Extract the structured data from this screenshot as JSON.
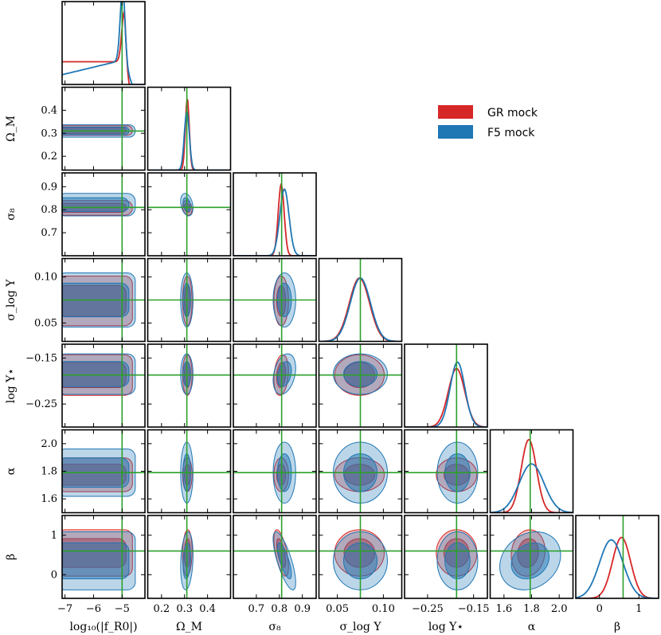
{
  "chart_data": {
    "type": "corner",
    "title": "",
    "parameters": [
      {
        "name": "log10_fR0",
        "label": "log₁₀(|f_R0|)",
        "range": [
          -7.1,
          -4.2
        ],
        "ticks": [
          -7,
          -6,
          -5
        ],
        "tick_labels": [
          "−7",
          "−6",
          "−5"
        ],
        "truth": -5.0
      },
      {
        "name": "Omega_M",
        "label": "Ω_M",
        "range": [
          0.14,
          0.5
        ],
        "ticks": [
          0.2,
          0.3,
          0.4
        ],
        "tick_labels": [
          "0.2",
          "0.3",
          "0.4"
        ],
        "truth": 0.31
      },
      {
        "name": "sigma_8",
        "label": "σ₈",
        "range": [
          0.6,
          0.96
        ],
        "ticks": [
          0.7,
          0.8,
          0.9
        ],
        "tick_labels": [
          "0.7",
          "0.8",
          "0.9"
        ],
        "truth": 0.81
      },
      {
        "name": "sigma_logY",
        "label": "σ_log Y",
        "range": [
          0.03,
          0.12
        ],
        "ticks": [
          0.05,
          0.1
        ],
        "tick_labels": [
          "0.05",
          "0.10"
        ],
        "truth": 0.075
      },
      {
        "name": "logY_star",
        "label": "log Y⋆",
        "range": [
          -0.3,
          -0.12
        ],
        "ticks": [
          -0.25,
          -0.15
        ],
        "tick_labels": [
          "−0.25",
          "−0.15"
        ],
        "truth": -0.187
      },
      {
        "name": "alpha",
        "label": "α",
        "range": [
          1.5,
          2.1
        ],
        "ticks": [
          1.6,
          1.8,
          2.0
        ],
        "tick_labels": [
          "1.6",
          "1.8",
          "2.0"
        ],
        "truth": 1.79
      },
      {
        "name": "beta",
        "label": "β",
        "range": [
          -0.6,
          1.5
        ],
        "ticks": [
          0,
          1
        ],
        "tick_labels": [
          "0",
          "1"
        ],
        "truth": 0.6
      }
    ],
    "x_axis_labels": [
      "log₁₀(|f_R0|)",
      "Ω_M",
      "σ₈",
      "σ_log Y",
      "log Y⋆",
      "α",
      "β"
    ],
    "y_axis_labels": [
      "",
      "Ω_M",
      "σ₈",
      "σ_log Y",
      "log Y⋆",
      "α",
      "β"
    ],
    "y_tick_labels": {
      "Omega_M": [
        "0.2",
        "0.3",
        "0.4"
      ],
      "sigma_8": [
        "0.7",
        "0.8",
        "0.9"
      ],
      "sigma_logY": [
        "0.05",
        "0.10"
      ],
      "logY_star": [
        "−0.25",
        "−0.15"
      ],
      "alpha": [
        "1.6",
        "1.8",
        "2.0"
      ],
      "beta": [
        "0",
        "1"
      ]
    },
    "series": [
      {
        "name": "GR mock",
        "color": "#d62728",
        "marginals": {
          "log10_fR0": {
            "shape": "flat_then_drop",
            "plateau_level": 0.28,
            "bump_at": -4.92,
            "bump_height": 0.62,
            "cutoff": -4.75
          },
          "Omega_M": {
            "mean": 0.312,
            "sd": 0.0085
          },
          "sigma_8": {
            "mean": 0.808,
            "sd": 0.013
          },
          "sigma_logY": {
            "mean": 0.074,
            "sd": 0.011
          },
          "logY_star": {
            "mean": -0.187,
            "sd": 0.018
          },
          "alpha": {
            "mean": 1.78,
            "sd": 0.055
          },
          "beta": {
            "mean": 0.56,
            "sd": 0.23
          }
        },
        "contours_2d": [
          {
            "x": "log10_fR0",
            "y": "Omega_M",
            "cx": -5.9,
            "cy": 0.312,
            "sx": 0.55,
            "sy": 0.0085,
            "rho": 0.0,
            "flat_x": true
          },
          {
            "x": "log10_fR0",
            "y": "sigma_8",
            "cx": -5.9,
            "cy": 0.808,
            "sx": 0.55,
            "sy": 0.013,
            "rho": 0.0,
            "flat_x": true
          },
          {
            "x": "log10_fR0",
            "y": "sigma_logY",
            "cx": -5.9,
            "cy": 0.074,
            "sx": 0.55,
            "sy": 0.011,
            "rho": 0.0,
            "flat_x": true
          },
          {
            "x": "log10_fR0",
            "y": "logY_star",
            "cx": -5.9,
            "cy": -0.187,
            "sx": 0.55,
            "sy": 0.018,
            "rho": 0.0,
            "flat_x": true
          },
          {
            "x": "log10_fR0",
            "y": "alpha",
            "cx": -5.9,
            "cy": 1.775,
            "sx": 0.55,
            "sy": 0.05,
            "rho": 0.0,
            "flat_x": true
          },
          {
            "x": "log10_fR0",
            "y": "beta",
            "cx": -5.9,
            "cy": 0.55,
            "sx": 0.55,
            "sy": 0.24,
            "rho": 0.0,
            "flat_x": true
          },
          {
            "x": "Omega_M",
            "y": "sigma_8",
            "cx": 0.312,
            "cy": 0.808,
            "sx": 0.0085,
            "sy": 0.013,
            "rho": -0.2
          },
          {
            "x": "Omega_M",
            "y": "sigma_logY",
            "cx": 0.312,
            "cy": 0.074,
            "sx": 0.0085,
            "sy": 0.011,
            "rho": 0.0
          },
          {
            "x": "Omega_M",
            "y": "logY_star",
            "cx": 0.312,
            "cy": -0.187,
            "sx": 0.0085,
            "sy": 0.018,
            "rho": 0.0
          },
          {
            "x": "Omega_M",
            "y": "alpha",
            "cx": 0.312,
            "cy": 1.775,
            "sx": 0.0085,
            "sy": 0.05,
            "rho": 0.0
          },
          {
            "x": "Omega_M",
            "y": "beta",
            "cx": 0.312,
            "cy": 0.55,
            "sx": 0.0085,
            "sy": 0.24,
            "rho": 0.1
          },
          {
            "x": "sigma_8",
            "y": "sigma_logY",
            "cx": 0.808,
            "cy": 0.074,
            "sx": 0.013,
            "sy": 0.011,
            "rho": 0.0
          },
          {
            "x": "sigma_8",
            "y": "logY_star",
            "cx": 0.808,
            "cy": -0.187,
            "sx": 0.013,
            "sy": 0.018,
            "rho": 0.2
          },
          {
            "x": "sigma_8",
            "y": "alpha",
            "cx": 0.808,
            "cy": 1.775,
            "sx": 0.013,
            "sy": 0.05,
            "rho": 0.0
          },
          {
            "x": "sigma_8",
            "y": "beta",
            "cx": 0.808,
            "cy": 0.55,
            "sx": 0.013,
            "sy": 0.24,
            "rho": -0.6
          },
          {
            "x": "sigma_logY",
            "y": "logY_star",
            "cx": 0.074,
            "cy": -0.187,
            "sx": 0.011,
            "sy": 0.018,
            "rho": 0.0
          },
          {
            "x": "sigma_logY",
            "y": "alpha",
            "cx": 0.074,
            "cy": 1.775,
            "sx": 0.011,
            "sy": 0.05,
            "rho": 0.0
          },
          {
            "x": "sigma_logY",
            "y": "beta",
            "cx": 0.074,
            "cy": 0.55,
            "sx": 0.011,
            "sy": 0.24,
            "rho": 0.0
          },
          {
            "x": "logY_star",
            "y": "alpha",
            "cx": -0.187,
            "cy": 1.775,
            "sx": 0.018,
            "sy": 0.05,
            "rho": 0.0
          },
          {
            "x": "logY_star",
            "y": "beta",
            "cx": -0.187,
            "cy": 0.55,
            "sx": 0.018,
            "sy": 0.24,
            "rho": 0.0
          },
          {
            "x": "alpha",
            "y": "beta",
            "cx": 1.775,
            "cy": 0.55,
            "sx": 0.05,
            "sy": 0.24,
            "rho": 0.1
          }
        ]
      },
      {
        "name": "F5 mock",
        "color": "#1f77b4",
        "marginals": {
          "log10_fR0": {
            "shape": "rising_peak",
            "plateau_level": 0.12,
            "bump_at": -4.97,
            "bump_height": 0.95,
            "cutoff": -4.65
          },
          "Omega_M": {
            "mean": 0.31,
            "sd": 0.011
          },
          "sigma_8": {
            "mean": 0.822,
            "sd": 0.02
          },
          "sigma_logY": {
            "mean": 0.075,
            "sd": 0.011
          },
          "logY_star": {
            "mean": -0.185,
            "sd": 0.016
          },
          "alpha": {
            "mean": 1.8,
            "sd": 0.09
          },
          "beta": {
            "mean": 0.3,
            "sd": 0.3
          }
        },
        "contours_2d": [
          {
            "x": "log10_fR0",
            "y": "Omega_M",
            "cx": -5.8,
            "cy": 0.31,
            "sx": 0.6,
            "sy": 0.011,
            "rho": 0.0,
            "flat_x": true
          },
          {
            "x": "log10_fR0",
            "y": "sigma_8",
            "cx": -5.8,
            "cy": 0.822,
            "sx": 0.6,
            "sy": 0.02,
            "rho": 0.0,
            "flat_x": true
          },
          {
            "x": "log10_fR0",
            "y": "sigma_logY",
            "cx": -5.8,
            "cy": 0.075,
            "sx": 0.6,
            "sy": 0.012,
            "rho": 0.0,
            "flat_x": true
          },
          {
            "x": "log10_fR0",
            "y": "logY_star",
            "cx": -5.8,
            "cy": -0.185,
            "sx": 0.6,
            "sy": 0.018,
            "rho": 0.0,
            "flat_x": true
          },
          {
            "x": "log10_fR0",
            "y": "alpha",
            "cx": -5.8,
            "cy": 1.79,
            "sx": 0.6,
            "sy": 0.07,
            "rho": 0.3,
            "flat_x": true
          },
          {
            "x": "log10_fR0",
            "y": "beta",
            "cx": -5.8,
            "cy": 0.35,
            "sx": 0.6,
            "sy": 0.3,
            "rho": 0.0,
            "flat_x": true
          },
          {
            "x": "Omega_M",
            "y": "sigma_8",
            "cx": 0.31,
            "cy": 0.822,
            "sx": 0.011,
            "sy": 0.02,
            "rho": -0.3
          },
          {
            "x": "Omega_M",
            "y": "sigma_logY",
            "cx": 0.31,
            "cy": 0.075,
            "sx": 0.011,
            "sy": 0.012,
            "rho": 0.0
          },
          {
            "x": "Omega_M",
            "y": "logY_star",
            "cx": 0.31,
            "cy": -0.185,
            "sx": 0.011,
            "sy": 0.018,
            "rho": 0.0
          },
          {
            "x": "Omega_M",
            "y": "alpha",
            "cx": 0.31,
            "cy": 1.79,
            "sx": 0.011,
            "sy": 0.09,
            "rho": 0.0
          },
          {
            "x": "Omega_M",
            "y": "beta",
            "cx": 0.31,
            "cy": 0.35,
            "sx": 0.011,
            "sy": 0.3,
            "rho": 0.2
          },
          {
            "x": "sigma_8",
            "y": "sigma_logY",
            "cx": 0.822,
            "cy": 0.075,
            "sx": 0.02,
            "sy": 0.012,
            "rho": 0.0
          },
          {
            "x": "sigma_8",
            "y": "logY_star",
            "cx": 0.822,
            "cy": -0.185,
            "sx": 0.02,
            "sy": 0.018,
            "rho": 0.3
          },
          {
            "x": "sigma_8",
            "y": "alpha",
            "cx": 0.822,
            "cy": 1.79,
            "sx": 0.02,
            "sy": 0.09,
            "rho": 0.0
          },
          {
            "x": "sigma_8",
            "y": "beta",
            "cx": 0.822,
            "cy": 0.35,
            "sx": 0.02,
            "sy": 0.3,
            "rho": -0.75
          },
          {
            "x": "sigma_logY",
            "y": "logY_star",
            "cx": 0.075,
            "cy": -0.185,
            "sx": 0.012,
            "sy": 0.018,
            "rho": 0.0
          },
          {
            "x": "sigma_logY",
            "y": "alpha",
            "cx": 0.075,
            "cy": 1.79,
            "sx": 0.012,
            "sy": 0.09,
            "rho": 0.0
          },
          {
            "x": "sigma_logY",
            "y": "beta",
            "cx": 0.075,
            "cy": 0.35,
            "sx": 0.012,
            "sy": 0.3,
            "rho": 0.0
          },
          {
            "x": "logY_star",
            "y": "alpha",
            "cx": -0.185,
            "cy": 1.79,
            "sx": 0.018,
            "sy": 0.09,
            "rho": 0.0
          },
          {
            "x": "logY_star",
            "y": "beta",
            "cx": -0.185,
            "cy": 0.35,
            "sx": 0.018,
            "sy": 0.3,
            "rho": 0.0
          },
          {
            "x": "alpha",
            "y": "beta",
            "cx": 1.79,
            "cy": 0.35,
            "sx": 0.09,
            "sy": 0.3,
            "rho": 0.2
          }
        ]
      }
    ],
    "truth_line_color": "#2ca02c",
    "legend": {
      "entries": [
        "GR mock",
        "F5 mock"
      ],
      "placement": "top-right"
    },
    "grid": false
  }
}
